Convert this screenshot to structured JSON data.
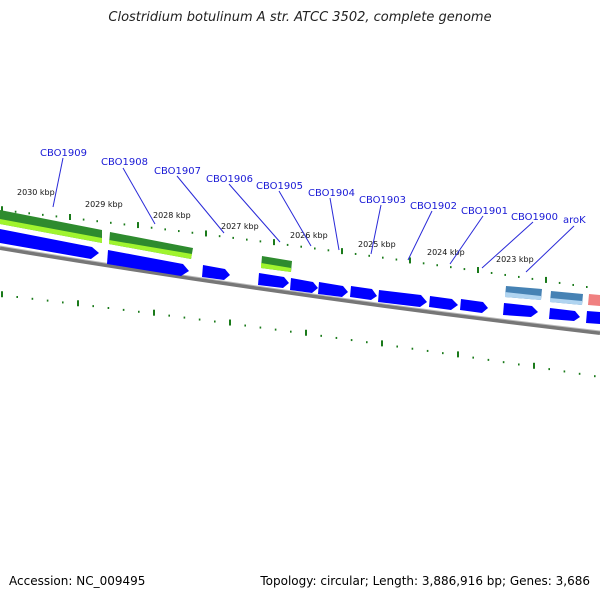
{
  "title": "Clostridium botulinum A str. ATCC 3502, complete genome",
  "accession": "Accession: NC_009495",
  "summary": "Topology: circular; Length: 3,886,916 bp; Genes: 3,686",
  "colors": {
    "gene_forward": "#0000ff",
    "gene_highlight_green": "#2e8b2e",
    "gene_highlight_lime": "#adff2f",
    "gene_steel": "#4682b4",
    "gene_pink": "#f08080",
    "backbone": "#808080",
    "tick": "#1a7a1a",
    "label": "#1a1ad6"
  },
  "tick_labels": [
    "2030 kbp",
    "2029 kbp",
    "2028 kbp",
    "2027 kbp",
    "2026 kbp",
    "2025 kbp",
    "2024 kbp",
    "2023 kbp"
  ],
  "gene_labels": [
    "CBO1909",
    "CBO1908",
    "CBO1907",
    "CBO1906",
    "CBO1905",
    "CBO1904",
    "CBO1903",
    "CBO1902",
    "CBO1901",
    "CBO1900",
    "aroK"
  ]
}
